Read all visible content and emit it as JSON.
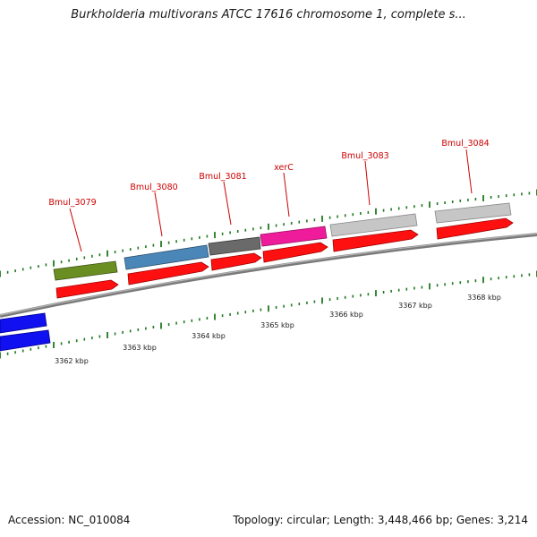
{
  "header": {
    "title": "Burkholderia multivorans ATCC 17616 chromosome 1, complete s..."
  },
  "footer": {
    "accession": "Accession: NC_010084",
    "summary": "Topology: circular; Length: 3,448,466 bp; Genes: 3,214"
  },
  "colors": {
    "backbone": "#8a8a8a",
    "tick": "#1f7a1f",
    "cds_red": "#ff0000",
    "label_red": "#cc0000",
    "blue_gene": "#0000ee"
  },
  "genes": [
    {
      "name": "Bmul_3079",
      "color": "#6b8e23"
    },
    {
      "name": "Bmul_3080",
      "color": "#4682b4"
    },
    {
      "name": "Bmul_3081",
      "color": "#696969"
    },
    {
      "name": "xerC",
      "color": "#ee1c9b"
    },
    {
      "name": "Bmul_3083",
      "color": "#c0c0c0"
    },
    {
      "name": "Bmul_3084",
      "color": "#c0c0c0"
    }
  ],
  "scale_labels": [
    "3362 kbp",
    "3363 kbp",
    "3364 kbp",
    "3365 kbp",
    "3366 kbp",
    "3367 kbp",
    "3368 kbp"
  ]
}
